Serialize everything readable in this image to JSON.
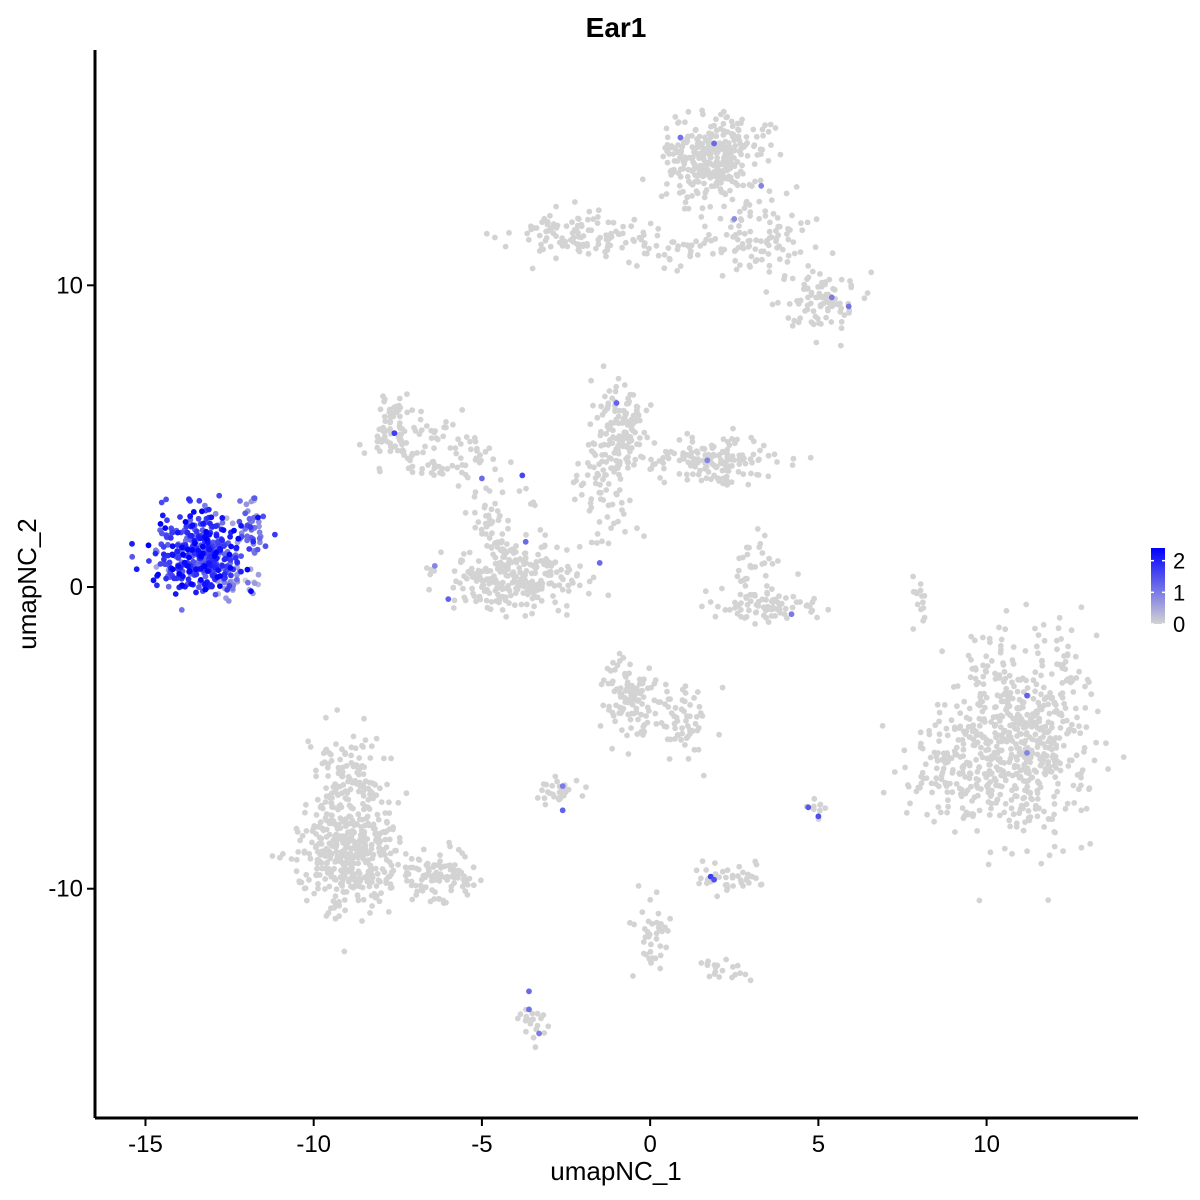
{
  "chart_data": {
    "type": "scatter",
    "title": "Ear1",
    "xlabel": "umapNC_1",
    "ylabel": "umapNC_2",
    "xlim": [
      -16.5,
      14.5
    ],
    "ylim": [
      -17.6,
      17.8
    ],
    "x_ticks": [
      -15,
      -10,
      -5,
      0,
      5,
      10
    ],
    "x_tick_labels": [
      "-15",
      "-10",
      "-5",
      "0",
      "5",
      "10"
    ],
    "y_ticks": [
      -10,
      0,
      10
    ],
    "y_tick_labels": [
      "-10",
      "0",
      "10"
    ],
    "grid": false,
    "legend_position": "right",
    "colorbar": {
      "min": 0,
      "max": 2.4,
      "ticks": [
        0,
        1,
        2
      ],
      "tick_labels": [
        "0",
        "1",
        "2"
      ],
      "low_color": "#d3d3d3",
      "high_color": "#0000ff"
    },
    "point_color_low": "#d3d3d3",
    "point_color_high": "#0000ff",
    "clusters": [
      {
        "cx": -13.4,
        "cy": 1.1,
        "sx": 0.65,
        "sy": 0.65,
        "n": 420,
        "expr_mean": 1.7,
        "expr_sd": 0.45
      },
      {
        "cx": -11.9,
        "cy": 1.9,
        "sx": 0.3,
        "sy": 0.5,
        "n": 40,
        "expr_mean": 1.1,
        "expr_sd": 0.4
      },
      {
        "cx": -12.3,
        "cy": 0.1,
        "sx": 0.3,
        "sy": 0.2,
        "n": 25,
        "expr_mean": 0.6,
        "expr_sd": 0.3
      },
      {
        "cx": 1.9,
        "cy": 14.2,
        "sx": 0.75,
        "sy": 0.7,
        "n": 320,
        "expr_mean": 0.0,
        "expr_sd": 0.0
      },
      {
        "cx": 3.3,
        "cy": 11.7,
        "sx": 0.8,
        "sy": 0.6,
        "n": 90,
        "expr_mean": 0.0,
        "expr_sd": 0.0
      },
      {
        "cx": 5.1,
        "cy": 9.5,
        "sx": 0.6,
        "sy": 0.5,
        "n": 90,
        "expr_mean": 0.0,
        "expr_sd": 0.0
      },
      {
        "cx": -2.2,
        "cy": 11.7,
        "sx": 1.1,
        "sy": 0.35,
        "n": 110,
        "expr_mean": 0.0,
        "expr_sd": 0.0
      },
      {
        "cx": 0.6,
        "cy": 11.2,
        "sx": 0.9,
        "sy": 0.3,
        "n": 40,
        "expr_mean": 0.0,
        "expr_sd": 0.0
      },
      {
        "cx": -7.6,
        "cy": 5.3,
        "sx": 0.35,
        "sy": 0.5,
        "n": 70,
        "expr_mean": 0.0,
        "expr_sd": 0.0
      },
      {
        "cx": -6.2,
        "cy": 4.5,
        "sx": 0.8,
        "sy": 0.5,
        "n": 80,
        "expr_mean": 0.0,
        "expr_sd": 0.0
      },
      {
        "cx": -4.0,
        "cy": 0.3,
        "sx": 1.0,
        "sy": 0.55,
        "n": 260,
        "expr_mean": 0.0,
        "expr_sd": 0.0
      },
      {
        "cx": -4.6,
        "cy": 2.3,
        "sx": 0.5,
        "sy": 0.6,
        "n": 50,
        "expr_mean": 0.0,
        "expr_sd": 0.0
      },
      {
        "cx": -0.8,
        "cy": 5.3,
        "sx": 0.4,
        "sy": 0.7,
        "n": 130,
        "expr_mean": 0.0,
        "expr_sd": 0.0
      },
      {
        "cx": -1.4,
        "cy": 3.7,
        "sx": 0.5,
        "sy": 0.6,
        "n": 60,
        "expr_mean": 0.0,
        "expr_sd": 0.0
      },
      {
        "cx": 1.8,
        "cy": 4.2,
        "sx": 1.0,
        "sy": 0.35,
        "n": 150,
        "expr_mean": 0.0,
        "expr_sd": 0.0
      },
      {
        "cx": 3.5,
        "cy": -0.6,
        "sx": 0.8,
        "sy": 0.3,
        "n": 80,
        "expr_mean": 0.0,
        "expr_sd": 0.0
      },
      {
        "cx": 3.1,
        "cy": 0.7,
        "sx": 0.3,
        "sy": 0.5,
        "n": 30,
        "expr_mean": 0.0,
        "expr_sd": 0.0
      },
      {
        "cx": -0.6,
        "cy": -3.6,
        "sx": 0.45,
        "sy": 0.6,
        "n": 110,
        "expr_mean": 0.0,
        "expr_sd": 0.0
      },
      {
        "cx": 1.0,
        "cy": -4.5,
        "sx": 0.45,
        "sy": 0.6,
        "n": 60,
        "expr_mean": 0.0,
        "expr_sd": 0.0
      },
      {
        "cx": 11.0,
        "cy": -5.0,
        "sx": 1.05,
        "sy": 1.6,
        "n": 600,
        "expr_mean": 0.0,
        "expr_sd": 0.0
      },
      {
        "cx": 9.0,
        "cy": -6.0,
        "sx": 0.7,
        "sy": 0.9,
        "n": 120,
        "expr_mean": 0.0,
        "expr_sd": 0.0
      },
      {
        "cx": -9.0,
        "cy": -8.8,
        "sx": 0.75,
        "sy": 0.9,
        "n": 420,
        "expr_mean": 0.0,
        "expr_sd": 0.0
      },
      {
        "cx": -9.0,
        "cy": -6.3,
        "sx": 0.5,
        "sy": 0.8,
        "n": 110,
        "expr_mean": 0.0,
        "expr_sd": 0.0
      },
      {
        "cx": -6.2,
        "cy": -9.6,
        "sx": 0.7,
        "sy": 0.45,
        "n": 100,
        "expr_mean": 0.0,
        "expr_sd": 0.0
      },
      {
        "cx": -2.7,
        "cy": -6.8,
        "sx": 0.3,
        "sy": 0.2,
        "n": 30,
        "expr_mean": 0.0,
        "expr_sd": 0.0
      },
      {
        "cx": 2.4,
        "cy": -9.6,
        "sx": 0.5,
        "sy": 0.25,
        "n": 40,
        "expr_mean": 0.0,
        "expr_sd": 0.0
      },
      {
        "cx": 0.0,
        "cy": -11.5,
        "sx": 0.3,
        "sy": 0.7,
        "n": 40,
        "expr_mean": 0.0,
        "expr_sd": 0.0
      },
      {
        "cx": 2.2,
        "cy": -12.7,
        "sx": 0.4,
        "sy": 0.2,
        "n": 20,
        "expr_mean": 0.0,
        "expr_sd": 0.0
      },
      {
        "cx": -3.6,
        "cy": -14.5,
        "sx": 0.25,
        "sy": 0.5,
        "n": 20,
        "expr_mean": 0.0,
        "expr_sd": 0.0
      },
      {
        "cx": 5.0,
        "cy": -7.4,
        "sx": 0.15,
        "sy": 0.2,
        "n": 10,
        "expr_mean": 0.0,
        "expr_sd": 0.0
      },
      {
        "cx": 8.0,
        "cy": -0.3,
        "sx": 0.15,
        "sy": 0.5,
        "n": 15,
        "expr_mean": 0.0,
        "expr_sd": 0.0
      },
      {
        "cx": -1.5,
        "cy": 1.7,
        "sx": 0.6,
        "sy": 0.3,
        "n": 15,
        "expr_mean": 0.0,
        "expr_sd": 0.0
      }
    ],
    "expressed_points": [
      {
        "x": -7.6,
        "y": 5.1,
        "value": 1.7
      },
      {
        "x": -3.8,
        "y": 3.7,
        "value": 1.6
      },
      {
        "x": -5.0,
        "y": 3.6,
        "value": 1.2
      },
      {
        "x": -1.0,
        "y": 6.1,
        "value": 1.3
      },
      {
        "x": 1.7,
        "y": 4.2,
        "value": 0.9
      },
      {
        "x": 0.9,
        "y": 14.9,
        "value": 1.1
      },
      {
        "x": 1.9,
        "y": 14.7,
        "value": 1.2
      },
      {
        "x": 3.3,
        "y": 13.3,
        "value": 0.9
      },
      {
        "x": 2.5,
        "y": 12.2,
        "value": 0.8
      },
      {
        "x": 5.4,
        "y": 9.6,
        "value": 1.0
      },
      {
        "x": 5.9,
        "y": 9.3,
        "value": 1.1
      },
      {
        "x": -3.7,
        "y": 1.5,
        "value": 1.2
      },
      {
        "x": -6.4,
        "y": 0.7,
        "value": 0.9
      },
      {
        "x": -6.0,
        "y": -0.4,
        "value": 1.3
      },
      {
        "x": -1.5,
        "y": 0.8,
        "value": 1.2
      },
      {
        "x": 4.2,
        "y": -0.9,
        "value": 1.0
      },
      {
        "x": 11.2,
        "y": -3.6,
        "value": 1.3
      },
      {
        "x": 11.2,
        "y": -5.5,
        "value": 0.9
      },
      {
        "x": 4.7,
        "y": -7.3,
        "value": 1.4
      },
      {
        "x": 5.0,
        "y": -7.6,
        "value": 1.5
      },
      {
        "x": -2.6,
        "y": -6.6,
        "value": 1.0
      },
      {
        "x": -2.6,
        "y": -7.4,
        "value": 1.3
      },
      {
        "x": 1.8,
        "y": -9.6,
        "value": 1.7
      },
      {
        "x": 1.9,
        "y": -9.7,
        "value": 1.5
      },
      {
        "x": -3.6,
        "y": -13.4,
        "value": 1.2
      },
      {
        "x": -3.6,
        "y": -14.0,
        "value": 1.1
      },
      {
        "x": -3.3,
        "y": -14.8,
        "value": 1.0
      }
    ]
  }
}
